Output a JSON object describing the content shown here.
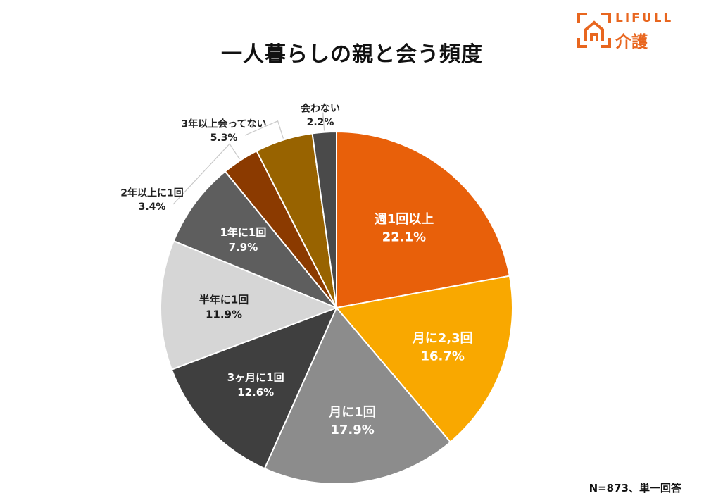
{
  "logo": {
    "name": "LIFULL",
    "sub": "介護",
    "icon": "house-frame-icon",
    "color": "#e8661f"
  },
  "note": "N=873、単一回答",
  "chart_data": {
    "type": "pie",
    "title": "一人暮らしの親と会う頻度",
    "unit": "%",
    "slices": [
      {
        "label": "週1回以上",
        "value": 22.1,
        "display": "22.1%",
        "color": "#e8600a",
        "text_color": "#ffffff",
        "placement": "inside"
      },
      {
        "label": "月に2,3回",
        "value": 16.7,
        "display": "16.7%",
        "color": "#f9a800",
        "text_color": "#ffffff",
        "placement": "inside"
      },
      {
        "label": "月に1回",
        "value": 17.9,
        "display": "17.9%",
        "color": "#8c8c8c",
        "text_color": "#ffffff",
        "placement": "inside"
      },
      {
        "label": "3ヶ月に1回",
        "value": 12.6,
        "display": "12.6%",
        "color": "#3f3f3f",
        "text_color": "#ffffff",
        "placement": "inside"
      },
      {
        "label": "半年に1回",
        "value": 11.9,
        "display": "11.9%",
        "color": "#d6d6d6",
        "text_color": "#1a1a1a",
        "placement": "inside"
      },
      {
        "label": "1年に1回",
        "value": 7.9,
        "display": "7.9%",
        "color": "#5e5e5e",
        "text_color": "#ffffff",
        "placement": "inside"
      },
      {
        "label": "2年以上に1回",
        "value": 3.4,
        "display": "3.4%",
        "color": "#8b3a00",
        "text_color": "#222222",
        "placement": "outside"
      },
      {
        "label": "3年以上会ってない",
        "value": 5.3,
        "display": "5.3%",
        "color": "#986300",
        "text_color": "#222222",
        "placement": "outside"
      },
      {
        "label": "会わない",
        "value": 2.2,
        "display": "2.2%",
        "color": "#4a4a4a",
        "text_color": "#222222",
        "placement": "outside"
      }
    ],
    "start_angle": "12 o'clock",
    "direction": "clockwise",
    "legend": "none"
  }
}
